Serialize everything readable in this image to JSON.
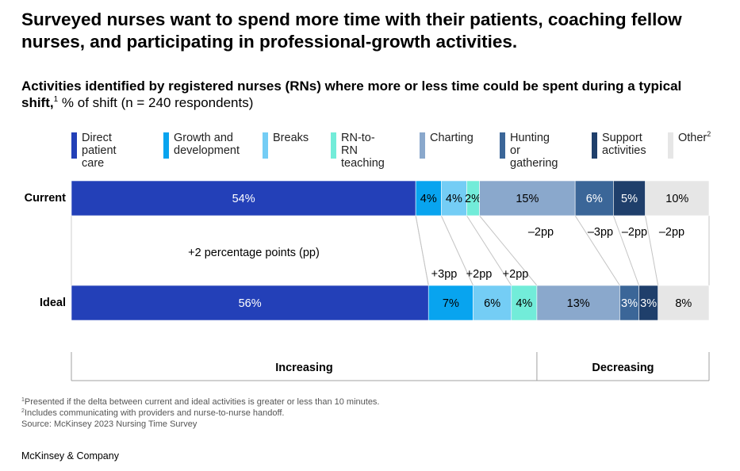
{
  "headline": "Surveyed nurses want to spend more time with their patients, coaching fellow nurses, and participating in professional-growth activities.",
  "subtitle": {
    "bold": "Activities identified by registered nurses (RNs) where more or less time could be spent during a typical shift,",
    "sup": "1",
    "unit": "% of shift",
    "note": "(n = 240 respondents)"
  },
  "chart_data": {
    "type": "bar",
    "orientation": "horizontal",
    "stacked": true,
    "categories": [
      "Current",
      "Ideal"
    ],
    "series": [
      {
        "name": "Direct patient care",
        "legend_lines": [
          "Direct",
          "patient care"
        ],
        "color": "#2340b8",
        "text_color": "#ffffff",
        "values": [
          54,
          56
        ],
        "labels": [
          "54%",
          "56%"
        ],
        "delta": "+2 percentage points (pp)"
      },
      {
        "name": "Growth and development",
        "legend_lines": [
          "Growth and",
          "development"
        ],
        "color": "#08a4ef",
        "text_color": "#000000",
        "values": [
          4,
          7
        ],
        "labels": [
          "4%",
          "7%"
        ],
        "delta": "+3pp"
      },
      {
        "name": "Breaks",
        "legend_lines": [
          "Breaks"
        ],
        "color": "#74cdf5",
        "text_color": "#000000",
        "values": [
          4,
          6
        ],
        "labels": [
          "4%",
          "6%"
        ],
        "delta": "+2pp"
      },
      {
        "name": "RN-to-RN teaching",
        "legend_lines": [
          "RN-to-RN",
          "teaching"
        ],
        "color": "#72ecd9",
        "text_color": "#000000",
        "values": [
          2,
          4
        ],
        "labels": [
          "2%",
          "4%"
        ],
        "delta": "+2pp"
      },
      {
        "name": "Charting",
        "legend_lines": [
          "Charting"
        ],
        "color": "#8aa8cc",
        "text_color": "#000000",
        "values": [
          15,
          13
        ],
        "labels": [
          "15%",
          "13%"
        ],
        "delta": "–2pp"
      },
      {
        "name": "Hunting or gathering",
        "legend_lines": [
          "Hunting or",
          "gathering"
        ],
        "color": "#3b6698",
        "text_color": "#ffffff",
        "values": [
          6,
          3
        ],
        "labels": [
          "6%",
          "3%"
        ],
        "delta": "–3pp"
      },
      {
        "name": "Support activities",
        "legend_lines": [
          "Support",
          "activities"
        ],
        "color": "#1f3f6b",
        "text_color": "#ffffff",
        "values": [
          5,
          3
        ],
        "labels": [
          "5%",
          "3%"
        ],
        "delta": "–2pp"
      },
      {
        "name": "Other",
        "legend_lines": [
          "Other"
        ],
        "legend_sup": "2",
        "color": "#e6e6e6",
        "text_color": "#000000",
        "values": [
          10,
          8
        ],
        "labels": [
          "10%",
          "8%"
        ],
        "delta": "–2pp"
      }
    ],
    "xlim": [
      0,
      100
    ],
    "groups": [
      {
        "label": "Increasing",
        "series_count": 4
      },
      {
        "label": "Decreasing",
        "series_count": 4
      }
    ]
  },
  "footnotes": [
    {
      "sup": "1",
      "text": "Presented if the delta between current and ideal activities is greater or less than 10 minutes."
    },
    {
      "sup": "2",
      "text": "Includes communicating with providers and nurse-to-nurse handoff."
    },
    {
      "sup": "",
      "text": " Source: McKinsey 2023 Nursing Time Survey"
    }
  ],
  "brand": "McKinsey & Company"
}
